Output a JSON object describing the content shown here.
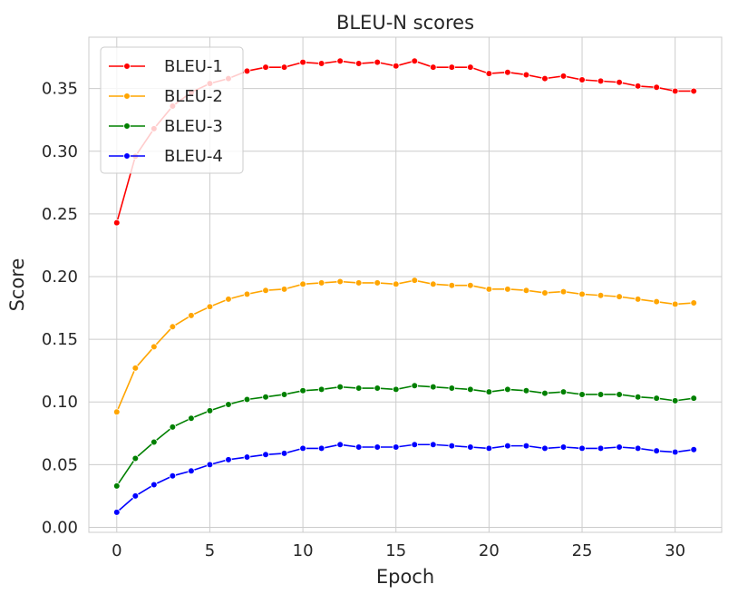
{
  "chart_data": {
    "type": "line",
    "title": "BLEU-N scores",
    "xlabel": "Epoch",
    "ylabel": "Score",
    "xlim": [
      -1.5,
      32.5
    ],
    "ylim": [
      -0.004,
      0.391
    ],
    "xticks": [
      0,
      5,
      10,
      15,
      20,
      25,
      30
    ],
    "xtick_labels": [
      "0",
      "5",
      "10",
      "15",
      "20",
      "25",
      "30"
    ],
    "yticks": [
      0.0,
      0.05,
      0.1,
      0.15,
      0.2,
      0.25,
      0.3,
      0.35
    ],
    "ytick_labels": [
      "0.00",
      "0.05",
      "0.10",
      "0.15",
      "0.20",
      "0.25",
      "0.30",
      "0.35"
    ],
    "grid": true,
    "legend_position": "top-left",
    "x": [
      0,
      1,
      2,
      3,
      4,
      5,
      6,
      7,
      8,
      9,
      10,
      11,
      12,
      13,
      14,
      15,
      16,
      17,
      18,
      19,
      20,
      21,
      22,
      23,
      24,
      25,
      26,
      27,
      28,
      29,
      30,
      31
    ],
    "series": [
      {
        "name": "BLEU-1",
        "color": "#ff0000",
        "values": [
          0.243,
          0.296,
          0.318,
          0.336,
          0.347,
          0.354,
          0.358,
          0.364,
          0.367,
          0.367,
          0.371,
          0.37,
          0.372,
          0.37,
          0.371,
          0.368,
          0.372,
          0.367,
          0.367,
          0.367,
          0.362,
          0.363,
          0.361,
          0.358,
          0.36,
          0.357,
          0.356,
          0.355,
          0.352,
          0.351,
          0.348,
          0.348
        ]
      },
      {
        "name": "BLEU-2",
        "color": "#ffa500",
        "values": [
          0.092,
          0.127,
          0.144,
          0.16,
          0.169,
          0.176,
          0.182,
          0.186,
          0.189,
          0.19,
          0.194,
          0.195,
          0.196,
          0.195,
          0.195,
          0.194,
          0.197,
          0.194,
          0.193,
          0.193,
          0.19,
          0.19,
          0.189,
          0.187,
          0.188,
          0.186,
          0.185,
          0.184,
          0.182,
          0.18,
          0.178,
          0.179
        ]
      },
      {
        "name": "BLEU-3",
        "color": "#008000",
        "values": [
          0.033,
          0.055,
          0.068,
          0.08,
          0.087,
          0.093,
          0.098,
          0.102,
          0.104,
          0.106,
          0.109,
          0.11,
          0.112,
          0.111,
          0.111,
          0.11,
          0.113,
          0.112,
          0.111,
          0.11,
          0.108,
          0.11,
          0.109,
          0.107,
          0.108,
          0.106,
          0.106,
          0.106,
          0.104,
          0.103,
          0.101,
          0.103
        ]
      },
      {
        "name": "BLEU-4",
        "color": "#0000ff",
        "values": [
          0.012,
          0.025,
          0.034,
          0.041,
          0.045,
          0.05,
          0.054,
          0.056,
          0.058,
          0.059,
          0.063,
          0.063,
          0.066,
          0.064,
          0.064,
          0.064,
          0.066,
          0.066,
          0.065,
          0.064,
          0.063,
          0.065,
          0.065,
          0.063,
          0.064,
          0.063,
          0.063,
          0.064,
          0.063,
          0.061,
          0.06,
          0.062
        ]
      }
    ]
  }
}
